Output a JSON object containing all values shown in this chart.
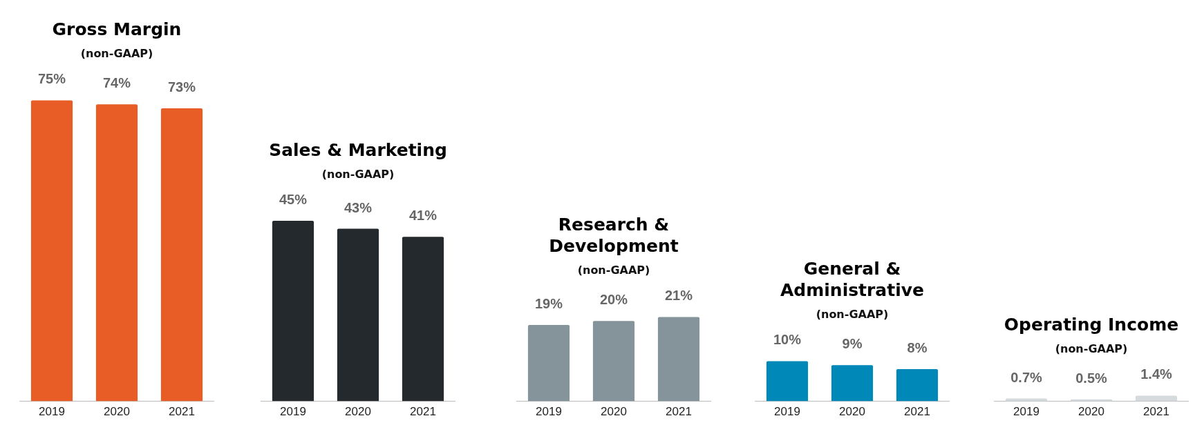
{
  "chart_data": [
    {
      "type": "bar",
      "title": "Gross Margin",
      "subtitle": "(non-GAAP)",
      "categories": [
        "2019",
        "2020",
        "2021"
      ],
      "values": [
        75,
        74,
        73
      ],
      "value_labels": [
        "75%",
        "74%",
        "73%"
      ],
      "color": "#e85d26",
      "tick_labels": "x"
    },
    {
      "type": "bar",
      "title": "Sales & Marketing",
      "subtitle": "(non-GAAP)",
      "categories": [
        "2019",
        "2020",
        "2021"
      ],
      "values": [
        45,
        43,
        41
      ],
      "value_labels": [
        "45%",
        "43%",
        "41%"
      ],
      "color": "#23292d",
      "tick_labels": "x"
    },
    {
      "type": "bar",
      "title": "Research & Development",
      "subtitle": "(non-GAAP)",
      "categories": [
        "2019",
        "2020",
        "2021"
      ],
      "values": [
        19,
        20,
        21
      ],
      "value_labels": [
        "19%",
        "20%",
        "21%"
      ],
      "color": "#85939b",
      "tick_labels": "x"
    },
    {
      "type": "bar",
      "title": "General & Administrative",
      "subtitle": "(non-GAAP)",
      "categories": [
        "2019",
        "2020",
        "2021"
      ],
      "values": [
        10,
        9,
        8
      ],
      "value_labels": [
        "10%",
        "9%",
        "8%"
      ],
      "color": "#0088b8",
      "tick_labels": "x"
    },
    {
      "type": "bar",
      "title": "Operating Income",
      "subtitle": "(non-GAAP)",
      "categories": [
        "2019",
        "2020",
        "2021"
      ],
      "values": [
        0.7,
        0.5,
        1.4
      ],
      "value_labels": [
        "0.7%",
        "0.5%",
        "1.4%"
      ],
      "color": "#d5dadd",
      "tick_labels": "x"
    }
  ]
}
